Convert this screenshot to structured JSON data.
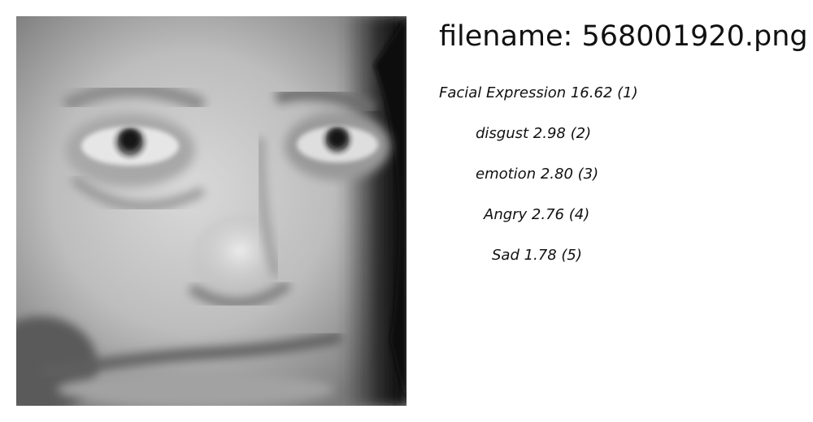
{
  "title": "filename: 568001920.png",
  "labels": [
    "Facial Expression 16.62 (1)",
    "disgust  2.98 (2)",
    "emotion  2.80 (3)",
    "Angry  2.76 (4)",
    "Sad  1.78 (5)"
  ]
}
